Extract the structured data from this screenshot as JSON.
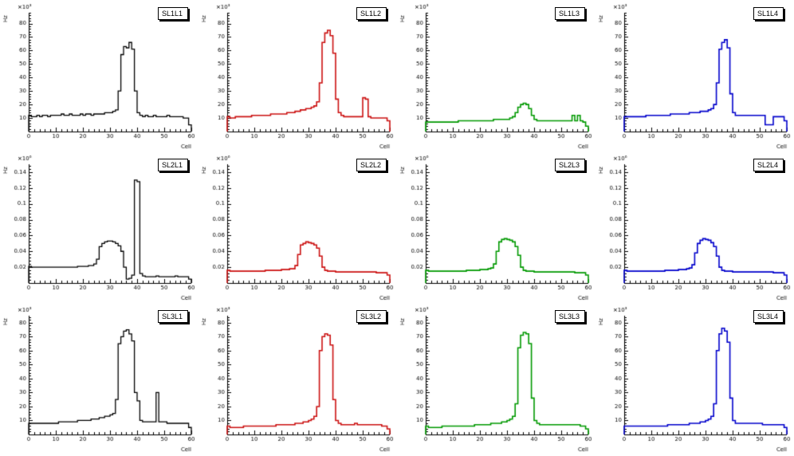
{
  "page": {
    "background": "#ffffff"
  },
  "layout": {
    "rows": 3,
    "cols": 4
  },
  "chart_data": [
    {
      "id": "sl1l1",
      "type": "bar",
      "style": "step-histogram",
      "title": "SL1L1",
      "color": "#000000",
      "line_width": 1.3,
      "xlabel": "Cell",
      "ylabel": "Hz",
      "exponent": "×10³",
      "xlim": [
        0,
        60
      ],
      "ylim": [
        0,
        88
      ],
      "xticks": [
        0,
        10,
        20,
        30,
        40,
        50,
        60
      ],
      "yticks": [
        10,
        20,
        30,
        40,
        50,
        60,
        70,
        80
      ],
      "values": [
        12,
        11,
        11,
        12,
        11,
        12,
        12,
        11,
        12,
        12,
        12,
        12,
        13,
        12,
        12,
        13,
        12,
        12,
        12,
        13,
        12,
        13,
        13,
        12,
        13,
        13,
        13,
        13,
        14,
        14,
        14,
        15,
        16,
        30,
        57,
        63,
        62,
        66,
        61,
        30,
        14,
        12,
        11,
        12,
        11,
        11,
        12,
        11,
        11,
        11,
        11,
        12,
        11,
        11,
        11,
        11,
        11,
        10,
        10,
        5
      ]
    },
    {
      "id": "sl1l2",
      "type": "bar",
      "style": "step-histogram",
      "title": "SL1L2",
      "color": "#cc1111",
      "line_width": 1.6,
      "xlabel": "Cell",
      "ylabel": "Hz",
      "exponent": "×10³",
      "xlim": [
        0,
        60
      ],
      "ylim": [
        0,
        88
      ],
      "xticks": [
        0,
        10,
        20,
        30,
        40,
        50,
        60
      ],
      "yticks": [
        10,
        20,
        30,
        40,
        50,
        60,
        70,
        80
      ],
      "values": [
        11,
        10,
        10,
        11,
        11,
        11,
        11,
        11,
        11,
        12,
        12,
        12,
        12,
        12,
        12,
        12,
        13,
        13,
        13,
        13,
        13,
        13,
        14,
        14,
        14,
        15,
        15,
        16,
        16,
        17,
        17,
        18,
        19,
        22,
        36,
        66,
        73,
        75,
        71,
        58,
        24,
        14,
        12,
        11,
        11,
        11,
        11,
        11,
        11,
        11,
        25,
        24,
        11,
        10,
        10,
        10,
        10,
        10,
        10,
        8
      ]
    },
    {
      "id": "sl1l3",
      "type": "bar",
      "style": "step-histogram",
      "title": "SL1L3",
      "color": "#009900",
      "line_width": 1.6,
      "xlabel": "Cell",
      "ylabel": "Hz",
      "exponent": "×10³",
      "xlim": [
        0,
        60
      ],
      "ylim": [
        0,
        88
      ],
      "xticks": [
        0,
        10,
        20,
        30,
        40,
        50,
        60
      ],
      "yticks": [
        10,
        20,
        30,
        40,
        50,
        60,
        70,
        80
      ],
      "values": [
        7,
        7,
        7,
        7,
        7,
        7,
        7,
        7,
        7,
        7,
        7,
        7,
        8,
        8,
        8,
        8,
        8,
        8,
        8,
        8,
        8,
        8,
        8,
        8,
        8,
        9,
        9,
        9,
        9,
        9,
        9,
        10,
        11,
        14,
        18,
        20,
        21,
        20,
        17,
        12,
        9,
        8,
        8,
        8,
        8,
        8,
        8,
        8,
        8,
        8,
        8,
        8,
        8,
        8,
        12,
        8,
        12,
        8,
        7,
        4
      ]
    },
    {
      "id": "sl1l4",
      "type": "bar",
      "style": "step-histogram",
      "title": "SL1L4",
      "color": "#0000cc",
      "line_width": 1.6,
      "xlabel": "Cell",
      "ylabel": "Hz",
      "exponent": "×10³",
      "xlim": [
        0,
        60
      ],
      "ylim": [
        0,
        88
      ],
      "xticks": [
        0,
        10,
        20,
        30,
        40,
        50,
        60
      ],
      "yticks": [
        10,
        20,
        30,
        40,
        50,
        60,
        70,
        80
      ],
      "values": [
        11,
        11,
        11,
        11,
        11,
        11,
        11,
        11,
        12,
        12,
        12,
        12,
        12,
        12,
        12,
        12,
        12,
        13,
        13,
        13,
        13,
        13,
        13,
        13,
        14,
        14,
        14,
        14,
        15,
        15,
        15,
        16,
        17,
        20,
        36,
        61,
        66,
        68,
        62,
        28,
        14,
        12,
        12,
        12,
        12,
        12,
        12,
        12,
        12,
        12,
        12,
        12,
        5,
        5,
        5,
        11,
        11,
        11,
        11,
        8
      ]
    },
    {
      "id": "sl2l1",
      "type": "bar",
      "style": "step-histogram",
      "title": "SL2L1",
      "color": "#000000",
      "line_width": 1.3,
      "xlabel": "Cell",
      "ylabel": "Hz",
      "exponent": "×10⁶",
      "xlim": [
        0,
        60
      ],
      "ylim": [
        0,
        0.15
      ],
      "xticks": [
        0,
        10,
        20,
        30,
        40,
        50,
        60
      ],
      "yticks": [
        0.02,
        0.04,
        0.06,
        0.08,
        0.1,
        0.12,
        0.14
      ],
      "values": [
        0.021,
        0.02,
        0.02,
        0.02,
        0.02,
        0.02,
        0.02,
        0.02,
        0.02,
        0.02,
        0.02,
        0.02,
        0.02,
        0.02,
        0.02,
        0.02,
        0.02,
        0.02,
        0.021,
        0.021,
        0.021,
        0.021,
        0.022,
        0.022,
        0.024,
        0.03,
        0.046,
        0.05,
        0.052,
        0.053,
        0.053,
        0.052,
        0.05,
        0.047,
        0.04,
        0.02,
        0.005,
        0.006,
        0.01,
        0.13,
        0.128,
        0.012,
        0.009,
        0.008,
        0.008,
        0.008,
        0.008,
        0.009,
        0.008,
        0.008,
        0.008,
        0.008,
        0.008,
        0.008,
        0.009,
        0.008,
        0.008,
        0.008,
        0.008,
        0.005
      ]
    },
    {
      "id": "sl2l2",
      "type": "bar",
      "style": "step-histogram",
      "title": "SL2L2",
      "color": "#cc1111",
      "line_width": 1.6,
      "xlabel": "Cell",
      "ylabel": "Hz",
      "exponent": "×10⁶",
      "xlim": [
        0,
        60
      ],
      "ylim": [
        0,
        0.15
      ],
      "xticks": [
        0,
        10,
        20,
        30,
        40,
        50,
        60
      ],
      "yticks": [
        0.02,
        0.04,
        0.06,
        0.08,
        0.1,
        0.12,
        0.14
      ],
      "values": [
        0.016,
        0.015,
        0.015,
        0.015,
        0.015,
        0.015,
        0.015,
        0.015,
        0.015,
        0.015,
        0.015,
        0.015,
        0.015,
        0.015,
        0.016,
        0.016,
        0.016,
        0.016,
        0.016,
        0.016,
        0.017,
        0.017,
        0.017,
        0.018,
        0.018,
        0.022,
        0.036,
        0.048,
        0.05,
        0.052,
        0.051,
        0.05,
        0.048,
        0.044,
        0.034,
        0.02,
        0.016,
        0.015,
        0.015,
        0.015,
        0.014,
        0.014,
        0.014,
        0.014,
        0.014,
        0.014,
        0.014,
        0.014,
        0.014,
        0.014,
        0.014,
        0.014,
        0.014,
        0.014,
        0.014,
        0.013,
        0.013,
        0.013,
        0.013,
        0.01
      ]
    },
    {
      "id": "sl2l3",
      "type": "bar",
      "style": "step-histogram",
      "title": "SL2L3",
      "color": "#009900",
      "line_width": 1.6,
      "xlabel": "Cell",
      "ylabel": "Hz",
      "exponent": "×10⁶",
      "xlim": [
        0,
        60
      ],
      "ylim": [
        0,
        0.15
      ],
      "xticks": [
        0,
        10,
        20,
        30,
        40,
        50,
        60
      ],
      "yticks": [
        0.02,
        0.04,
        0.06,
        0.08,
        0.1,
        0.12,
        0.14
      ],
      "values": [
        0.016,
        0.015,
        0.015,
        0.015,
        0.015,
        0.015,
        0.015,
        0.015,
        0.015,
        0.015,
        0.015,
        0.015,
        0.015,
        0.015,
        0.015,
        0.016,
        0.016,
        0.016,
        0.016,
        0.016,
        0.017,
        0.017,
        0.017,
        0.018,
        0.019,
        0.024,
        0.04,
        0.052,
        0.055,
        0.056,
        0.055,
        0.054,
        0.052,
        0.046,
        0.035,
        0.02,
        0.016,
        0.015,
        0.015,
        0.015,
        0.014,
        0.014,
        0.014,
        0.014,
        0.014,
        0.014,
        0.014,
        0.014,
        0.014,
        0.014,
        0.014,
        0.014,
        0.014,
        0.014,
        0.014,
        0.013,
        0.013,
        0.013,
        0.013,
        0.01
      ]
    },
    {
      "id": "sl2l4",
      "type": "bar",
      "style": "step-histogram",
      "title": "SL2L4",
      "color": "#0000cc",
      "line_width": 1.6,
      "xlabel": "Cell",
      "ylabel": "Hz",
      "exponent": "×10⁶",
      "xlim": [
        0,
        60
      ],
      "ylim": [
        0,
        0.15
      ],
      "xticks": [
        0,
        10,
        20,
        30,
        40,
        50,
        60
      ],
      "yticks": [
        0.02,
        0.04,
        0.06,
        0.08,
        0.1,
        0.12,
        0.14
      ],
      "values": [
        0.016,
        0.015,
        0.015,
        0.015,
        0.015,
        0.015,
        0.015,
        0.015,
        0.015,
        0.015,
        0.015,
        0.015,
        0.015,
        0.015,
        0.015,
        0.016,
        0.016,
        0.016,
        0.016,
        0.016,
        0.017,
        0.017,
        0.017,
        0.018,
        0.019,
        0.023,
        0.038,
        0.05,
        0.054,
        0.056,
        0.055,
        0.054,
        0.051,
        0.046,
        0.034,
        0.02,
        0.016,
        0.015,
        0.015,
        0.015,
        0.014,
        0.014,
        0.014,
        0.014,
        0.014,
        0.014,
        0.014,
        0.014,
        0.014,
        0.014,
        0.014,
        0.014,
        0.014,
        0.014,
        0.014,
        0.013,
        0.013,
        0.013,
        0.013,
        0.01
      ]
    },
    {
      "id": "sl3l1",
      "type": "bar",
      "style": "step-histogram",
      "title": "SL3L1",
      "color": "#000000",
      "line_width": 1.3,
      "xlabel": "Cell",
      "ylabel": "Hz",
      "exponent": "×10³",
      "xlim": [
        0,
        60
      ],
      "ylim": [
        0,
        85
      ],
      "xticks": [
        0,
        10,
        20,
        30,
        40,
        50,
        60
      ],
      "yticks": [
        10,
        20,
        30,
        40,
        50,
        60,
        70,
        80
      ],
      "values": [
        8,
        8,
        8,
        8,
        8,
        8,
        8,
        8,
        8,
        8,
        8,
        9,
        9,
        9,
        9,
        9,
        9,
        9,
        10,
        10,
        10,
        10,
        10,
        11,
        11,
        11,
        12,
        12,
        13,
        13,
        14,
        15,
        25,
        65,
        70,
        74,
        75,
        72,
        67,
        30,
        24,
        10,
        9,
        9,
        9,
        9,
        9,
        30,
        9,
        9,
        9,
        8,
        8,
        8,
        8,
        8,
        8,
        8,
        8,
        5
      ]
    },
    {
      "id": "sl3l2",
      "type": "bar",
      "style": "step-histogram",
      "title": "SL3L2",
      "color": "#cc1111",
      "line_width": 1.6,
      "xlabel": "Cell",
      "ylabel": "Hz",
      "exponent": "×10³",
      "xlim": [
        0,
        60
      ],
      "ylim": [
        0,
        85
      ],
      "xticks": [
        0,
        10,
        20,
        30,
        40,
        50,
        60
      ],
      "yticks": [
        10,
        20,
        30,
        40,
        50,
        60,
        70,
        80
      ],
      "values": [
        6,
        5,
        5,
        5,
        5,
        5,
        6,
        6,
        6,
        6,
        6,
        6,
        6,
        6,
        6,
        6,
        6,
        6,
        7,
        7,
        7,
        7,
        7,
        7,
        7,
        8,
        8,
        8,
        9,
        9,
        10,
        11,
        13,
        20,
        60,
        70,
        72,
        71,
        64,
        25,
        10,
        8,
        7,
        7,
        7,
        7,
        7,
        8,
        7,
        7,
        7,
        7,
        7,
        7,
        7,
        7,
        7,
        6,
        6,
        4
      ]
    },
    {
      "id": "sl3l3",
      "type": "bar",
      "style": "step-histogram",
      "title": "SL3L3",
      "color": "#009900",
      "line_width": 1.6,
      "xlabel": "Cell",
      "ylabel": "Hz",
      "exponent": "×10³",
      "xlim": [
        0,
        60
      ],
      "ylim": [
        0,
        85
      ],
      "xticks": [
        0,
        10,
        20,
        30,
        40,
        50,
        60
      ],
      "yticks": [
        10,
        20,
        30,
        40,
        50,
        60,
        70,
        80
      ],
      "values": [
        6,
        5,
        5,
        5,
        5,
        5,
        6,
        6,
        6,
        6,
        6,
        6,
        6,
        6,
        6,
        6,
        6,
        6,
        7,
        7,
        7,
        7,
        7,
        7,
        8,
        8,
        8,
        8,
        9,
        9,
        10,
        11,
        13,
        22,
        62,
        71,
        73,
        72,
        65,
        26,
        10,
        8,
        7,
        7,
        7,
        7,
        7,
        7,
        7,
        7,
        7,
        7,
        7,
        7,
        7,
        7,
        7,
        6,
        6,
        4
      ]
    },
    {
      "id": "sl3l4",
      "type": "bar",
      "style": "step-histogram",
      "title": "SL3L4",
      "color": "#0000cc",
      "line_width": 1.6,
      "xlabel": "Cell",
      "ylabel": "Hz",
      "exponent": "×10³",
      "xlim": [
        0,
        60
      ],
      "ylim": [
        0,
        85
      ],
      "xticks": [
        0,
        10,
        20,
        30,
        40,
        50,
        60
      ],
      "yticks": [
        10,
        20,
        30,
        40,
        50,
        60,
        70,
        80
      ],
      "values": [
        6,
        6,
        6,
        6,
        6,
        6,
        6,
        6,
        6,
        6,
        6,
        6,
        6,
        6,
        6,
        6,
        7,
        7,
        7,
        7,
        7,
        7,
        7,
        7,
        8,
        8,
        8,
        8,
        9,
        9,
        10,
        11,
        13,
        22,
        60,
        72,
        76,
        74,
        66,
        26,
        10,
        8,
        8,
        8,
        8,
        8,
        8,
        8,
        8,
        8,
        8,
        7,
        7,
        7,
        7,
        7,
        7,
        7,
        7,
        5
      ]
    }
  ]
}
